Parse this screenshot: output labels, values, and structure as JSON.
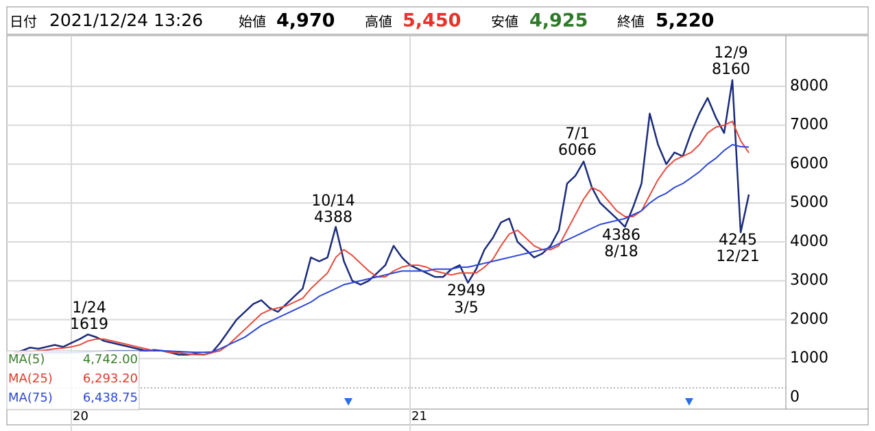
{
  "header": {
    "date_label": "日付",
    "date": "2021/12/24 13:26",
    "open_label": "始値",
    "open": "4,970",
    "high_label": "高値",
    "high": "5,450",
    "low_label": "安値",
    "low": "4,925",
    "close_label": "終値",
    "close": "5,220"
  },
  "chart_data": {
    "type": "line",
    "categories": [
      null,
      null,
      null,
      null,
      null,
      null,
      null,
      "20",
      null,
      null,
      null,
      null,
      null,
      null,
      null,
      null,
      null,
      null,
      null,
      null,
      null,
      null,
      null,
      null,
      null,
      null,
      null,
      null,
      null,
      null,
      null,
      null,
      null,
      null,
      null,
      null,
      null,
      null,
      null,
      null,
      null,
      null,
      null,
      null,
      null,
      null,
      null,
      null,
      "21",
      null,
      null,
      null,
      null,
      null,
      null,
      null,
      null,
      null,
      null,
      null,
      null,
      null,
      null,
      null,
      null,
      null,
      null,
      null,
      null,
      null,
      null,
      null,
      null,
      null,
      null,
      null,
      null,
      null,
      null,
      null,
      null,
      null,
      null,
      null,
      null,
      null,
      null,
      null,
      null,
      null
    ],
    "series": [
      {
        "color": "#1a2a7a",
        "values": [
          1150,
          1200,
          1280,
          1250,
          1300,
          1350,
          1300,
          1400,
          1500,
          1619,
          1550,
          1450,
          1400,
          1350,
          1300,
          1250,
          1200,
          1220,
          1200,
          1150,
          1100,
          1100,
          1120,
          1100,
          1150,
          1400,
          1700,
          2000,
          2200,
          2400,
          2500,
          2300,
          2200,
          2400,
          2600,
          2800,
          3600,
          3500,
          3600,
          4388,
          3500,
          3000,
          2900,
          3000,
          3200,
          3400,
          3900,
          3600,
          3400,
          3300,
          3200,
          3100,
          3100,
          3300,
          3400,
          2949,
          3300,
          3800,
          4100,
          4500,
          4600,
          4000,
          3800,
          3600,
          3700,
          3900,
          4300,
          5500,
          5700,
          6066,
          5400,
          5000,
          4800,
          4600,
          4386,
          4900,
          5500,
          7300,
          6500,
          6000,
          6300,
          6200,
          6800,
          7300,
          7700,
          7200,
          6800,
          8160,
          4245,
          5220
        ]
      },
      {
        "color": "#e8483a",
        "values": [
          1150,
          1150,
          1180,
          1200,
          1220,
          1250,
          1270,
          1300,
          1350,
          1450,
          1500,
          1500,
          1450,
          1400,
          1350,
          1300,
          1250,
          1200,
          1200,
          1150,
          1150,
          1120,
          1100,
          1100,
          1150,
          1200,
          1350,
          1550,
          1750,
          1950,
          2150,
          2250,
          2300,
          2350,
          2450,
          2550,
          2800,
          3000,
          3200,
          3600,
          3800,
          3650,
          3450,
          3250,
          3100,
          3100,
          3250,
          3350,
          3400,
          3400,
          3350,
          3250,
          3200,
          3150,
          3200,
          3200,
          3200,
          3350,
          3550,
          3900,
          4200,
          4300,
          4100,
          3900,
          3800,
          3800,
          3900,
          4300,
          4700,
          5100,
          5400,
          5300,
          5050,
          4800,
          4650,
          4650,
          4800,
          5200,
          5600,
          5900,
          6100,
          6200,
          6300,
          6500,
          6800,
          6950,
          7000,
          7100,
          6600,
          6293.2
        ]
      },
      {
        "color": "#2b46d6",
        "values": [
          1100,
          1100,
          1120,
          1120,
          1150,
          1150,
          1150,
          1150,
          1160,
          1170,
          1180,
          1190,
          1200,
          1200,
          1200,
          1200,
          1200,
          1200,
          1200,
          1190,
          1180,
          1170,
          1160,
          1160,
          1170,
          1250,
          1350,
          1450,
          1550,
          1700,
          1850,
          1950,
          2050,
          2150,
          2250,
          2350,
          2450,
          2600,
          2700,
          2800,
          2900,
          2950,
          3000,
          3050,
          3100,
          3150,
          3200,
          3250,
          3250,
          3250,
          3250,
          3300,
          3300,
          3300,
          3350,
          3350,
          3400,
          3450,
          3500,
          3550,
          3600,
          3650,
          3700,
          3750,
          3800,
          3850,
          3950,
          4050,
          4150,
          4250,
          4350,
          4450,
          4500,
          4550,
          4600,
          4700,
          4800,
          5000,
          5150,
          5250,
          5400,
          5500,
          5650,
          5800,
          6000,
          6150,
          6350,
          6500,
          6450,
          6438.75
        ]
      }
    ],
    "legend": [
      {
        "name": "MA(5)",
        "color": "#3a7d2c",
        "value": "4,742.00"
      },
      {
        "name": "MA(25)",
        "color": "#e03a2a",
        "value": "6,293.20"
      },
      {
        "name": "MA(75)",
        "color": "#2b46d6",
        "value": "6,438.75"
      }
    ],
    "annotations": [
      [
        "1/24",
        "1619"
      ],
      [
        "10/14",
        "4388"
      ],
      [
        "2949",
        "3/5"
      ],
      [
        "7/1",
        "6066"
      ],
      [
        "4386",
        "8/18"
      ],
      [
        "12/9",
        "8160"
      ],
      [
        "4245",
        "12/21"
      ]
    ],
    "ylim": [
      -300,
      9304
    ],
    "yticks": [
      0,
      1000,
      2000,
      3000,
      4000,
      5000,
      6000,
      7000,
      8000
    ],
    "grid": true
  }
}
